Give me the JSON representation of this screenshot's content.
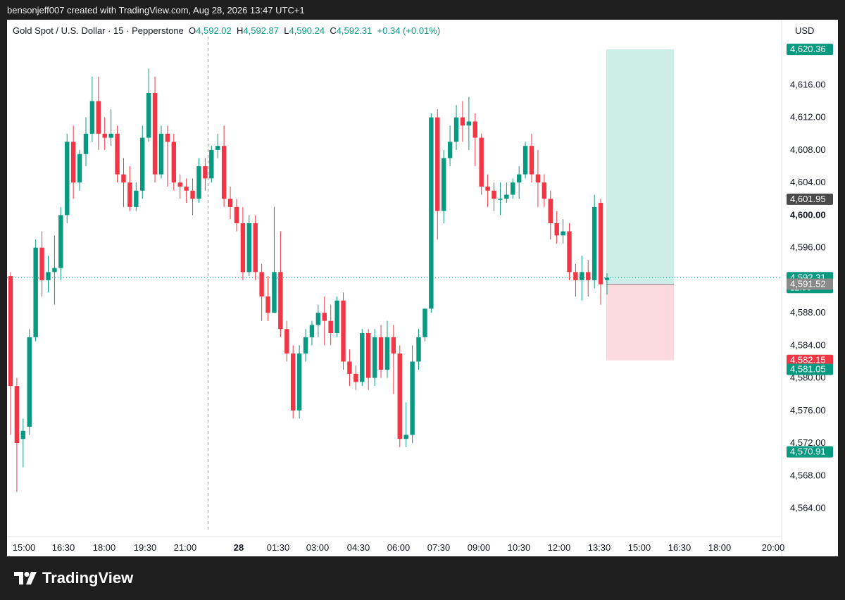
{
  "header": {
    "caption": "bensonjeff007 created with TradingView.com, Aug 28, 2026 13:47 UTC+1"
  },
  "legend": {
    "symbol": "Gold Spot / U.S. Dollar · 15 · Pepperstone",
    "o_label": "O",
    "o_value": "4,592.02",
    "h_label": "H",
    "h_value": "4,592.87",
    "l_label": "L",
    "l_value": "4,590.24",
    "c_label": "C",
    "c_value": "4,592.31",
    "change": "+0.34 (+0.01%)"
  },
  "axis": {
    "currency": "USD"
  },
  "footer": {
    "brand": "TradingView"
  },
  "colors": {
    "up": "#089981",
    "down": "#f23645",
    "profit_zone": "#cdeee6",
    "loss_zone": "#fcd9dc"
  },
  "chart_data": {
    "type": "candlestick",
    "symbol": "XAUUSD",
    "interval": "15",
    "ylim": [
      4560.5,
      4624.0
    ],
    "y_ticks": [
      "4,564.00",
      "4,568.00",
      "4,572.00",
      "4,576.00",
      "4,580.00",
      "4,584.00",
      "4,588.00",
      "4,592.00",
      "4,596.00",
      "4,600.00",
      "4,604.00",
      "4,608.00",
      "4,612.00",
      "4,616.00"
    ],
    "x_ticks": [
      {
        "label": "15:00",
        "bold": false
      },
      {
        "label": "16:30",
        "bold": false
      },
      {
        "label": "18:00",
        "bold": false
      },
      {
        "label": "19:30",
        "bold": false
      },
      {
        "label": "21:00",
        "bold": false
      },
      {
        "label": "28",
        "bold": true
      },
      {
        "label": "01:30",
        "bold": false
      },
      {
        "label": "03:00",
        "bold": false
      },
      {
        "label": "04:30",
        "bold": false
      },
      {
        "label": "06:00",
        "bold": false
      },
      {
        "label": "07:30",
        "bold": false
      },
      {
        "label": "09:00",
        "bold": false
      },
      {
        "label": "10:30",
        "bold": false
      },
      {
        "label": "12:00",
        "bold": false
      },
      {
        "label": "13:30",
        "bold": false
      },
      {
        "label": "15:00",
        "bold": false
      },
      {
        "label": "16:30",
        "bold": false
      },
      {
        "label": "18:00",
        "bold": false
      },
      {
        "label": "20:00",
        "bold": false
      }
    ],
    "price_labels": [
      {
        "text": "4,620.36",
        "value": 4620.36,
        "color": "#089981"
      },
      {
        "text": "4,601.95",
        "value": 4601.95,
        "color": "#4a4a4a"
      },
      {
        "text": "4,592.31",
        "value": 4592.31,
        "color": "#089981",
        "sub": "12:56"
      },
      {
        "text": "4,591.52",
        "value": 4591.52,
        "color": "#8a8a8a"
      },
      {
        "text": "4,582.15",
        "value": 4582.15,
        "color": "#f23645"
      },
      {
        "text": "4,581.05",
        "value": 4581.05,
        "color": "#089981"
      },
      {
        "text": "4,570.91",
        "value": 4570.91,
        "color": "#089981"
      }
    ],
    "bold_tick": "4,600.00",
    "position": {
      "entry": 4591.52,
      "target": 4620.36,
      "stop": 4582.15
    },
    "last_price": 4592.31,
    "candles": [
      {
        "o": 4592.5,
        "h": 4593.0,
        "l": 4573.0,
        "c": 4579.0
      },
      {
        "o": 4579.0,
        "h": 4580.0,
        "l": 4566.0,
        "c": 4572.0
      },
      {
        "o": 4572.5,
        "h": 4575.0,
        "l": 4569.0,
        "c": 4573.5
      },
      {
        "o": 4574.0,
        "h": 4586.0,
        "l": 4573.0,
        "c": 4585.0
      },
      {
        "o": 4585.0,
        "h": 4597.0,
        "l": 4584.5,
        "c": 4596.0
      },
      {
        "o": 4596.0,
        "h": 4598.0,
        "l": 4590.0,
        "c": 4592.0
      },
      {
        "o": 4592.0,
        "h": 4595.0,
        "l": 4590.5,
        "c": 4593.0
      },
      {
        "o": 4593.0,
        "h": 4597.5,
        "l": 4589.0,
        "c": 4593.5
      },
      {
        "o": 4593.5,
        "h": 4601.0,
        "l": 4592.0,
        "c": 4600.0
      },
      {
        "o": 4600.0,
        "h": 4610.0,
        "l": 4599.0,
        "c": 4609.0
      },
      {
        "o": 4609.0,
        "h": 4611.0,
        "l": 4602.0,
        "c": 4604.0
      },
      {
        "o": 4604.0,
        "h": 4608.0,
        "l": 4603.0,
        "c": 4607.5
      },
      {
        "o": 4607.5,
        "h": 4612.0,
        "l": 4606.0,
        "c": 4610.0
      },
      {
        "o": 4610.0,
        "h": 4617.0,
        "l": 4609.0,
        "c": 4614.0
      },
      {
        "o": 4614.0,
        "h": 4617.0,
        "l": 4608.0,
        "c": 4610.0
      },
      {
        "o": 4610.0,
        "h": 4612.0,
        "l": 4608.0,
        "c": 4609.5
      },
      {
        "o": 4609.5,
        "h": 4613.0,
        "l": 4608.5,
        "c": 4610.0
      },
      {
        "o": 4610.0,
        "h": 4611.0,
        "l": 4604.0,
        "c": 4605.0
      },
      {
        "o": 4605.0,
        "h": 4607.0,
        "l": 4601.0,
        "c": 4604.0
      },
      {
        "o": 4604.0,
        "h": 4606.0,
        "l": 4600.5,
        "c": 4601.0
      },
      {
        "o": 4601.0,
        "h": 4604.0,
        "l": 4600.5,
        "c": 4603.0
      },
      {
        "o": 4603.0,
        "h": 4611.0,
        "l": 4602.0,
        "c": 4609.5
      },
      {
        "o": 4609.5,
        "h": 4618.0,
        "l": 4609.0,
        "c": 4615.0
      },
      {
        "o": 4615.0,
        "h": 4617.0,
        "l": 4604.0,
        "c": 4605.0
      },
      {
        "o": 4605.0,
        "h": 4611.0,
        "l": 4604.5,
        "c": 4610.0
      },
      {
        "o": 4610.0,
        "h": 4611.0,
        "l": 4603.5,
        "c": 4609.0
      },
      {
        "o": 4609.0,
        "h": 4610.0,
        "l": 4603.0,
        "c": 4604.0
      },
      {
        "o": 4604.0,
        "h": 4605.0,
        "l": 4602.0,
        "c": 4603.5
      },
      {
        "o": 4603.5,
        "h": 4604.5,
        "l": 4601.5,
        "c": 4603.0
      },
      {
        "o": 4603.0,
        "h": 4604.5,
        "l": 4600.0,
        "c": 4602.0
      },
      {
        "o": 4602.0,
        "h": 4607.0,
        "l": 4601.5,
        "c": 4606.0
      },
      {
        "o": 4606.0,
        "h": 4607.0,
        "l": 4603.0,
        "c": 4604.5
      },
      {
        "o": 4604.5,
        "h": 4608.5,
        "l": 4604.0,
        "c": 4608.0
      },
      {
        "o": 4608.0,
        "h": 4610.0,
        "l": 4607.0,
        "c": 4608.5
      },
      {
        "o": 4608.5,
        "h": 4611.0,
        "l": 4601.0,
        "c": 4602.0
      },
      {
        "o": 4602.0,
        "h": 4603.5,
        "l": 4599.5,
        "c": 4601.0
      },
      {
        "o": 4601.0,
        "h": 4602.0,
        "l": 4598.0,
        "c": 4599.0
      },
      {
        "o": 4599.0,
        "h": 4601.0,
        "l": 4592.0,
        "c": 4593.0
      },
      {
        "o": 4593.0,
        "h": 4600.0,
        "l": 4592.5,
        "c": 4599.0
      },
      {
        "o": 4599.0,
        "h": 4600.0,
        "l": 4592.0,
        "c": 4593.0
      },
      {
        "o": 4593.0,
        "h": 4594.0,
        "l": 4587.0,
        "c": 4590.0
      },
      {
        "o": 4590.0,
        "h": 4592.5,
        "l": 4587.0,
        "c": 4588.0
      },
      {
        "o": 4588.0,
        "h": 4601.0,
        "l": 4588.0,
        "c": 4593.0
      },
      {
        "o": 4593.0,
        "h": 4598.0,
        "l": 4585.0,
        "c": 4586.0
      },
      {
        "o": 4586.0,
        "h": 4587.0,
        "l": 4582.0,
        "c": 4583.0
      },
      {
        "o": 4583.0,
        "h": 4584.0,
        "l": 4575.0,
        "c": 4576.0
      },
      {
        "o": 4576.0,
        "h": 4584.0,
        "l": 4575.0,
        "c": 4583.0
      },
      {
        "o": 4583.0,
        "h": 4586.0,
        "l": 4582.0,
        "c": 4585.0
      },
      {
        "o": 4585.0,
        "h": 4587.0,
        "l": 4584.0,
        "c": 4586.5
      },
      {
        "o": 4586.5,
        "h": 4589.0,
        "l": 4585.0,
        "c": 4588.0
      },
      {
        "o": 4588.0,
        "h": 4590.0,
        "l": 4584.0,
        "c": 4587.0
      },
      {
        "o": 4587.0,
        "h": 4589.0,
        "l": 4584.0,
        "c": 4585.5
      },
      {
        "o": 4585.5,
        "h": 4590.0,
        "l": 4585.0,
        "c": 4589.5
      },
      {
        "o": 4589.5,
        "h": 4590.5,
        "l": 4581.0,
        "c": 4582.0
      },
      {
        "o": 4582.0,
        "h": 4583.5,
        "l": 4579.0,
        "c": 4580.5
      },
      {
        "o": 4580.5,
        "h": 4581.5,
        "l": 4578.5,
        "c": 4579.5
      },
      {
        "o": 4579.5,
        "h": 4586.0,
        "l": 4579.0,
        "c": 4585.5
      },
      {
        "o": 4585.5,
        "h": 4586.0,
        "l": 4578.5,
        "c": 4580.0
      },
      {
        "o": 4580.0,
        "h": 4586.0,
        "l": 4579.0,
        "c": 4585.0
      },
      {
        "o": 4585.0,
        "h": 4586.5,
        "l": 4580.0,
        "c": 4581.0
      },
      {
        "o": 4581.0,
        "h": 4587.0,
        "l": 4580.0,
        "c": 4585.0
      },
      {
        "o": 4585.0,
        "h": 4586.5,
        "l": 4578.0,
        "c": 4583.0
      },
      {
        "o": 4583.0,
        "h": 4584.0,
        "l": 4571.5,
        "c": 4572.5
      },
      {
        "o": 4572.5,
        "h": 4577.0,
        "l": 4571.5,
        "c": 4573.0
      },
      {
        "o": 4573.0,
        "h": 4584.0,
        "l": 4572.0,
        "c": 4582.0
      },
      {
        "o": 4582.0,
        "h": 4586.0,
        "l": 4581.0,
        "c": 4585.0
      },
      {
        "o": 4585.0,
        "h": 4588.5,
        "l": 4584.5,
        "c": 4588.5
      },
      {
        "o": 4588.5,
        "h": 4612.5,
        "l": 4588.0,
        "c": 4612.0
      },
      {
        "o": 4612.0,
        "h": 4613.0,
        "l": 4597.0,
        "c": 4600.5
      },
      {
        "o": 4600.5,
        "h": 4608.0,
        "l": 4599.0,
        "c": 4607.0
      },
      {
        "o": 4607.0,
        "h": 4611.0,
        "l": 4606.0,
        "c": 4609.0
      },
      {
        "o": 4609.0,
        "h": 4613.5,
        "l": 4608.0,
        "c": 4612.0
      },
      {
        "o": 4612.0,
        "h": 4614.0,
        "l": 4609.0,
        "c": 4611.0
      },
      {
        "o": 4611.0,
        "h": 4614.5,
        "l": 4608.0,
        "c": 4611.5
      },
      {
        "o": 4611.5,
        "h": 4612.5,
        "l": 4606.0,
        "c": 4609.5
      },
      {
        "o": 4609.5,
        "h": 4610.0,
        "l": 4602.5,
        "c": 4603.5
      },
      {
        "o": 4603.5,
        "h": 4605.0,
        "l": 4601.0,
        "c": 4603.0
      },
      {
        "o": 4603.0,
        "h": 4604.0,
        "l": 4600.5,
        "c": 4602.0
      },
      {
        "o": 4602.0,
        "h": 4604.0,
        "l": 4600.0,
        "c": 4602.0
      },
      {
        "o": 4602.0,
        "h": 4604.0,
        "l": 4601.5,
        "c": 4602.5
      },
      {
        "o": 4602.5,
        "h": 4604.5,
        "l": 4602.0,
        "c": 4604.0
      },
      {
        "o": 4604.0,
        "h": 4606.0,
        "l": 4602.0,
        "c": 4605.0
      },
      {
        "o": 4605.0,
        "h": 4609.0,
        "l": 4604.5,
        "c": 4608.5
      },
      {
        "o": 4608.5,
        "h": 4610.0,
        "l": 4604.0,
        "c": 4605.0
      },
      {
        "o": 4605.0,
        "h": 4608.0,
        "l": 4601.0,
        "c": 4604.0
      },
      {
        "o": 4604.0,
        "h": 4605.0,
        "l": 4601.0,
        "c": 4602.0
      },
      {
        "o": 4602.0,
        "h": 4603.0,
        "l": 4597.0,
        "c": 4599.0
      },
      {
        "o": 4599.0,
        "h": 4600.5,
        "l": 4596.5,
        "c": 4597.5
      },
      {
        "o": 4597.5,
        "h": 4599.5,
        "l": 4596.5,
        "c": 4598.0
      },
      {
        "o": 4598.0,
        "h": 4599.0,
        "l": 4592.0,
        "c": 4593.0
      },
      {
        "o": 4593.0,
        "h": 4594.0,
        "l": 4590.0,
        "c": 4592.0
      },
      {
        "o": 4592.0,
        "h": 4595.0,
        "l": 4589.5,
        "c": 4593.0
      },
      {
        "o": 4593.0,
        "h": 4594.5,
        "l": 4590.0,
        "c": 4592.0
      },
      {
        "o": 4592.0,
        "h": 4602.5,
        "l": 4591.0,
        "c": 4601.0
      },
      {
        "o": 4601.5,
        "h": 4602.0,
        "l": 4589.0,
        "c": 4591.5
      },
      {
        "o": 4592.02,
        "h": 4592.87,
        "l": 4590.24,
        "c": 4592.31
      }
    ]
  }
}
